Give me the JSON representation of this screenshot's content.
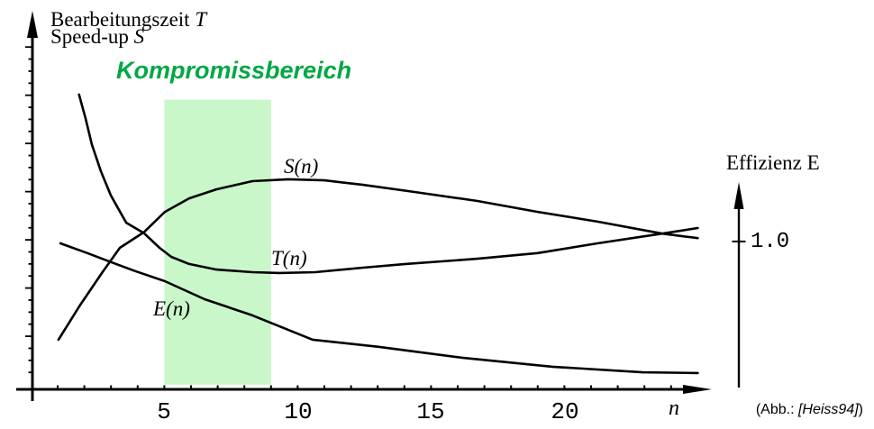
{
  "y_axis_title": {
    "line1": "Bearbeitungszeit",
    "line1_var": "T",
    "line2": "Speed-up",
    "line2_var": "S"
  },
  "attribution": {
    "prefix": "(Abb.:",
    "reference": "[Heiss94]",
    "suffix": ")"
  },
  "colors": {
    "curve": "#000000",
    "axis": "#000000",
    "highlight_region": "#c9f7c9",
    "highlight_text": "#00a843"
  },
  "chart_data": {
    "type": "line",
    "title": "",
    "xlabel": "n",
    "ylabel_left": "Bearbeitungszeit T / Speed-up S",
    "ylabel_right": "Effizienz E",
    "x_range": [
      0,
      25.5
    ],
    "x_ticks": [
      5,
      10,
      15,
      20
    ],
    "grid": false,
    "legend": "inline curve labels",
    "y_unit": "fraction of plot height above the x-axis (qualitative sketch, no left-axis scale)",
    "efficiency_reference": {
      "label": "1.0",
      "value": 1.0,
      "f": 0.392
    },
    "highlight_region": {
      "label": "Kompromissbereich",
      "n_from": 5,
      "n_to": 9,
      "f_top": 0.77,
      "f_bottom": 0.01
    },
    "series": [
      {
        "id": "s-curve",
        "name": "S(n)",
        "points": [
          [
            1.03,
            0.13
          ],
          [
            1.81,
            0.219
          ],
          [
            2.66,
            0.308
          ],
          [
            3.33,
            0.375
          ],
          [
            4.24,
            0.417
          ],
          [
            5.02,
            0.471
          ],
          [
            5.93,
            0.507
          ],
          [
            6.95,
            0.531
          ],
          [
            8.3,
            0.553
          ],
          [
            9.65,
            0.558
          ],
          [
            11.0,
            0.555
          ],
          [
            12.45,
            0.543
          ],
          [
            14.38,
            0.524
          ],
          [
            16.74,
            0.5
          ],
          [
            19.0,
            0.471
          ],
          [
            21.24,
            0.445
          ],
          [
            23.67,
            0.413
          ],
          [
            25.0,
            0.401
          ]
        ]
      },
      {
        "id": "t-curve",
        "name": "T(n)",
        "points": [
          [
            1.8,
            0.784
          ],
          [
            2.05,
            0.719
          ],
          [
            2.28,
            0.651
          ],
          [
            2.62,
            0.579
          ],
          [
            3.0,
            0.514
          ],
          [
            3.57,
            0.442
          ],
          [
            4.24,
            0.414
          ],
          [
            4.82,
            0.375
          ],
          [
            5.26,
            0.351
          ],
          [
            5.93,
            0.332
          ],
          [
            6.95,
            0.317
          ],
          [
            8.3,
            0.31
          ],
          [
            9.31,
            0.308
          ],
          [
            10.66,
            0.31
          ],
          [
            12.45,
            0.322
          ],
          [
            14.04,
            0.332
          ],
          [
            16.74,
            0.346
          ],
          [
            19.0,
            0.361
          ],
          [
            21.24,
            0.387
          ],
          [
            23.67,
            0.413
          ],
          [
            25.0,
            0.428
          ]
        ]
      },
      {
        "id": "e-curve",
        "name": "E(n)",
        "points": [
          [
            1.1,
            0.387
          ],
          [
            2.11,
            0.361
          ],
          [
            3.0,
            0.337
          ],
          [
            3.91,
            0.313
          ],
          [
            5.02,
            0.286
          ],
          [
            6.51,
            0.238
          ],
          [
            8.3,
            0.195
          ],
          [
            10.56,
            0.13
          ],
          [
            13.03,
            0.111
          ],
          [
            16.17,
            0.082
          ],
          [
            19.55,
            0.058
          ],
          [
            22.93,
            0.043
          ],
          [
            25.0,
            0.041
          ]
        ]
      }
    ]
  }
}
